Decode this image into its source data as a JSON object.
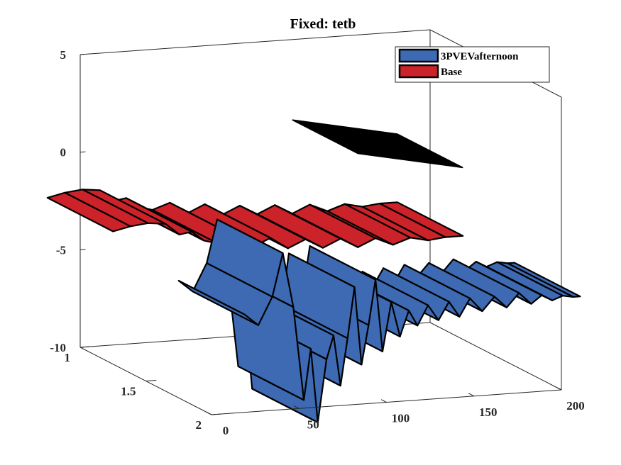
{
  "chart_data": {
    "type": "3d-ribbon",
    "title": "Fixed: tetb",
    "xlim": [
      0,
      200
    ],
    "ylim": [
      1,
      2
    ],
    "zlim": [
      -10,
      5
    ],
    "x_ticks": [
      "0",
      "50",
      "100",
      "150",
      "200"
    ],
    "y_ticks": [
      "1",
      "1.5",
      "2"
    ],
    "z_ticks": [
      "5",
      "0",
      "-5",
      "-10"
    ],
    "legend": {
      "position": "top-right"
    },
    "series": [
      {
        "name": "3PVEVafternoon",
        "color": "#3d6ab3",
        "y": 2,
        "points": [
          [
            0,
            -4.0
          ],
          [
            8,
            -4.6
          ],
          [
            16,
            -3.2
          ],
          [
            22,
            -1.0
          ],
          [
            28,
            -3.8
          ],
          [
            34,
            -8.6
          ],
          [
            38,
            -6.0
          ],
          [
            42,
            -9.8
          ],
          [
            47,
            -6.6
          ],
          [
            51,
            -5.4
          ],
          [
            55,
            -8.0
          ],
          [
            59,
            -5.6
          ],
          [
            63,
            -3.0
          ],
          [
            67,
            -7.0
          ],
          [
            71,
            -5.0
          ],
          [
            75,
            -2.7
          ],
          [
            79,
            -6.4
          ],
          [
            84,
            -3.9
          ],
          [
            89,
            -5.7
          ],
          [
            94,
            -4.4
          ],
          [
            99,
            -5.2
          ],
          [
            105,
            -4.2
          ],
          [
            111,
            -5.0
          ],
          [
            117,
            -4.1
          ],
          [
            123,
            -4.9
          ],
          [
            129,
            -4.0
          ],
          [
            136,
            -4.7
          ],
          [
            143,
            -4.0
          ],
          [
            150,
            -4.6
          ],
          [
            157,
            -3.9
          ],
          [
            164,
            -4.5
          ],
          [
            170,
            -4.1
          ],
          [
            176,
            -4.4
          ],
          [
            182,
            -4.2
          ],
          [
            188,
            -4.3
          ],
          [
            192,
            -4.3
          ]
        ]
      },
      {
        "name": "Base",
        "color": "#cc2229",
        "y": 1,
        "points": [
          [
            0,
            -3.2
          ],
          [
            10,
            -3.0
          ],
          [
            20,
            -2.9
          ],
          [
            30,
            -3.0
          ],
          [
            38,
            -3.6
          ],
          [
            45,
            -3.5
          ],
          [
            52,
            -4.0
          ],
          [
            60,
            -4.2
          ],
          [
            70,
            -3.9
          ],
          [
            80,
            -4.5
          ],
          [
            90,
            -4.1
          ],
          [
            100,
            -4.7
          ],
          [
            110,
            -4.3
          ],
          [
            120,
            -4.8
          ],
          [
            130,
            -4.4
          ],
          [
            140,
            -4.9
          ],
          [
            150,
            -4.5
          ],
          [
            160,
            -4.9
          ],
          [
            170,
            -4.6
          ],
          [
            180,
            -4.8
          ],
          [
            190,
            -4.7
          ],
          [
            200,
            -4.7
          ]
        ]
      }
    ]
  }
}
